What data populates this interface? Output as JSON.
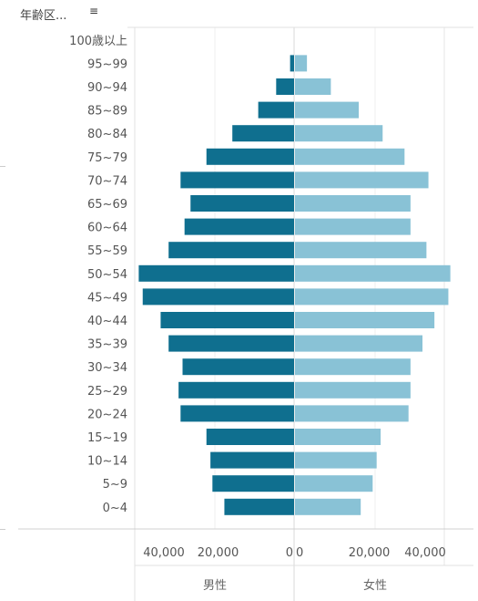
{
  "header": {
    "label": "年齢区...",
    "sort_icon": "sort-icon",
    "sort_glyph": "≡"
  },
  "chart_data": {
    "type": "bar",
    "categories": [
      "100歳以上",
      "95~99",
      "90~94",
      "85~89",
      "80~84",
      "75~79",
      "70~74",
      "65~69",
      "60~64",
      "55~59",
      "50~54",
      "45~49",
      "40~44",
      "35~39",
      "30~34",
      "25~29",
      "20~24",
      "15~19",
      "10~14",
      "5~9",
      "0~4"
    ],
    "series": [
      {
        "name": "男性",
        "color": "#0f6f8f",
        "values": [
          0,
          1000,
          4500,
          9000,
          15500,
          22000,
          28500,
          26000,
          27500,
          31500,
          39000,
          38000,
          33500,
          31500,
          28000,
          29000,
          28500,
          22000,
          21000,
          20500,
          17500
        ]
      },
      {
        "name": "女性",
        "color": "#89c2d6",
        "values": [
          0,
          3000,
          9000,
          16000,
          22000,
          27500,
          33500,
          29000,
          29000,
          33000,
          39000,
          38500,
          35000,
          32000,
          29000,
          29000,
          28500,
          21500,
          20500,
          19500,
          16500
        ]
      }
    ],
    "xticks_male": [
      "40,000",
      "20,000",
      "0"
    ],
    "xticks_female": [
      "0",
      "20,000",
      "40,000"
    ],
    "xlim": [
      0,
      40000
    ],
    "grid": true
  }
}
